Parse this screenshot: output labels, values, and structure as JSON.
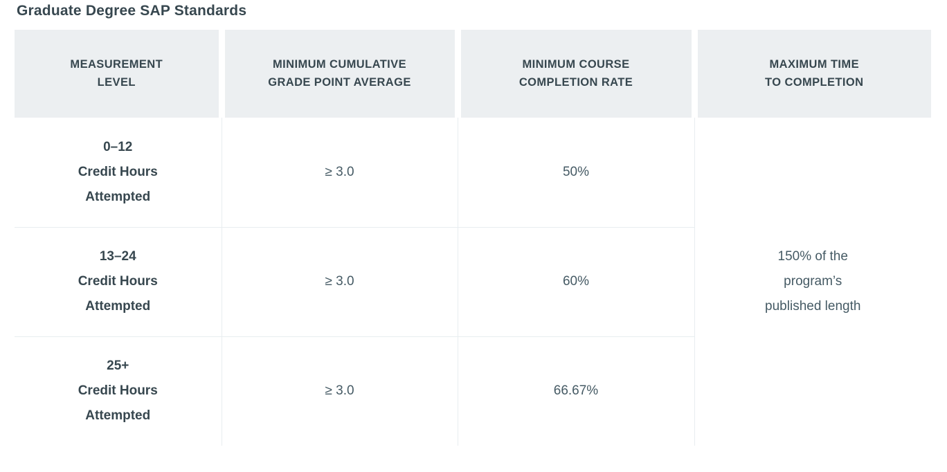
{
  "page": {
    "title": "Graduate Degree SAP Standards"
  },
  "table": {
    "columns": [
      {
        "id": "measurement-level",
        "line1": "MEASUREMENT",
        "line2": "LEVEL"
      },
      {
        "id": "minimum-cumulative-gpa",
        "line1": "MINIMUM CUMULATIVE",
        "line2": "GRADE POINT AVERAGE"
      },
      {
        "id": "minimum-course-completion-rate",
        "line1": "MINIMUM COURSE",
        "line2": "COMPLETION RATE"
      },
      {
        "id": "maximum-time-to-completion",
        "line1": "MAXIMUM TIME",
        "line2": "TO COMPLETION"
      }
    ],
    "rows": [
      {
        "credit_hours_range": "0–12",
        "credit_hours_label": "Credit Hours",
        "credit_hours_sublabel": "Attempted",
        "min_gpa": "≥ 3.0",
        "min_completion_rate": "50%"
      },
      {
        "credit_hours_range": "13–24",
        "credit_hours_label": "Credit Hours",
        "credit_hours_sublabel": "Attempted",
        "min_gpa": "≥ 3.0",
        "min_completion_rate": "60%"
      },
      {
        "credit_hours_range": "25+",
        "credit_hours_label": "Credit Hours",
        "credit_hours_sublabel": "Attempted",
        "min_gpa": "≥ 3.0",
        "min_completion_rate": "66.67%"
      }
    ],
    "max_time_to_completion": {
      "line1": "150% of the",
      "line2": "program’s",
      "line3": "published length"
    }
  },
  "colors": {
    "text": "#37474F",
    "text_soft": "#455A64",
    "header_bg": "#ECEFF1",
    "border": "#E8EDF0",
    "background": "#FFFFFF"
  }
}
